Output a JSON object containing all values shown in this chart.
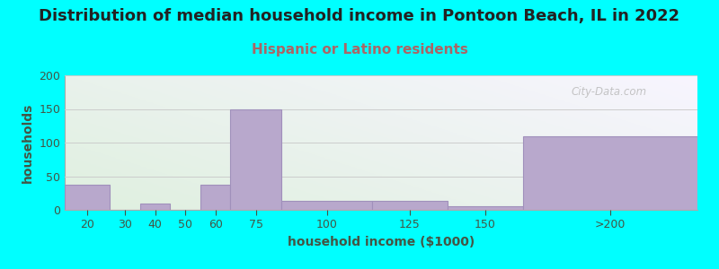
{
  "title": "Distribution of median household income in Pontoon Beach, IL in 2022",
  "subtitle": "Hispanic or Latino residents",
  "xlabel": "household income ($1000)",
  "ylabel": "households",
  "background_color": "#00FFFF",
  "bar_color": "#b8a8cc",
  "bar_edge_color": "#a090bb",
  "categories": [
    "20",
    "30",
    "40",
    "50",
    "60",
    "75",
    "100",
    "125",
    "150",
    ">200"
  ],
  "values": [
    37,
    0,
    10,
    0,
    38,
    150,
    14,
    14,
    5,
    109
  ],
  "bin_edges": [
    10,
    25,
    35,
    45,
    55,
    65,
    82,
    112,
    137,
    162,
    220
  ],
  "ylim": [
    0,
    200
  ],
  "yticks": [
    0,
    50,
    100,
    150,
    200
  ],
  "title_fontsize": 13,
  "subtitle_fontsize": 11,
  "subtitle_color": "#aa6666",
  "axis_label_fontsize": 10,
  "tick_fontsize": 9,
  "tick_color": "#445544",
  "label_color": "#445544",
  "title_color": "#222222",
  "watermark": "City-Data.com",
  "grid_color": "#cccccc",
  "plot_bg_topleft": "#edf8ed",
  "plot_bg_bottomright": "#f5f0fa"
}
